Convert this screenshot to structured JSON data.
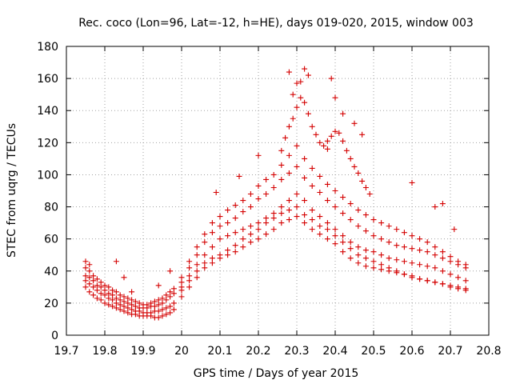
{
  "chart_data": {
    "type": "scatter",
    "title": "Rec. coco (Lon=96, Lat=-12, h=HE), days 019-020, 2015, window 003",
    "xlabel": "GPS time / Days of year 2015",
    "ylabel": "STEC from uqrg / TECUs",
    "xlim": [
      19.7,
      20.8
    ],
    "ylim": [
      0,
      180
    ],
    "x_ticks": [
      "19.7",
      "19.8",
      "19.9",
      "20",
      "20.1",
      "20.2",
      "20.3",
      "20.4",
      "20.5",
      "20.6",
      "20.7",
      "20.8"
    ],
    "y_ticks": [
      "0",
      "20",
      "40",
      "60",
      "80",
      "100",
      "120",
      "140",
      "160",
      "180"
    ],
    "grid": true,
    "marker": "+",
    "color": "#d40000",
    "series": [
      {
        "name": "",
        "x": [
          19.75,
          19.76,
          19.77,
          19.78,
          19.79,
          19.8,
          19.81,
          19.82,
          19.83,
          19.84,
          19.85,
          19.86,
          19.87,
          19.88,
          19.89,
          19.9,
          19.91,
          19.92,
          19.93,
          19.94,
          19.95,
          19.96,
          19.97,
          19.98,
          19.75,
          19.76,
          19.77,
          19.78,
          19.79,
          19.8,
          19.81,
          19.82,
          19.83,
          19.84,
          19.85,
          19.86,
          19.87,
          19.88,
          19.89,
          19.9,
          19.91,
          19.92,
          19.93,
          19.94,
          19.95,
          19.96,
          19.97,
          19.98,
          19.75,
          19.76,
          19.77,
          19.78,
          19.79,
          19.8,
          19.81,
          19.82,
          19.83,
          19.84,
          19.85,
          19.86,
          19.87,
          19.88,
          19.89,
          19.9,
          19.91,
          19.92,
          19.93,
          19.94,
          19.95,
          19.96,
          19.97,
          19.98,
          19.75,
          19.76,
          19.77,
          19.78,
          19.79,
          19.8,
          19.81,
          19.82,
          19.83,
          19.84,
          19.85,
          19.86,
          19.87,
          19.88,
          19.89,
          19.9,
          19.91,
          19.92,
          19.93,
          19.94,
          19.95,
          19.96,
          19.97,
          19.98,
          19.75,
          19.76,
          19.83,
          19.85,
          19.87,
          19.94,
          19.97,
          20.0,
          20.02,
          20.04,
          20.06,
          20.08,
          20.1,
          20.12,
          20.14,
          20.16,
          20.18,
          20.2,
          20.22,
          20.24,
          20.26,
          20.28,
          20.3,
          20.32,
          20.34,
          20.36,
          20.38,
          20.4,
          20.42,
          20.44,
          20.46,
          20.48,
          20.5,
          20.52,
          20.54,
          20.56,
          20.58,
          20.6,
          20.62,
          20.64,
          20.66,
          20.68,
          20.7,
          20.72,
          20.74,
          20.0,
          20.02,
          20.04,
          20.06,
          20.08,
          20.1,
          20.12,
          20.14,
          20.16,
          20.18,
          20.2,
          20.22,
          20.24,
          20.26,
          20.28,
          20.3,
          20.32,
          20.34,
          20.36,
          20.38,
          20.4,
          20.42,
          20.44,
          20.46,
          20.48,
          20.5,
          20.52,
          20.54,
          20.56,
          20.58,
          20.6,
          20.62,
          20.64,
          20.66,
          20.68,
          20.7,
          20.72,
          20.74,
          20.0,
          20.02,
          20.04,
          20.06,
          20.08,
          20.1,
          20.12,
          20.14,
          20.16,
          20.18,
          20.2,
          20.22,
          20.24,
          20.26,
          20.28,
          20.3,
          20.32,
          20.34,
          20.36,
          20.38,
          20.4,
          20.42,
          20.44,
          20.46,
          20.48,
          20.5,
          20.52,
          20.54,
          20.56,
          20.58,
          20.6,
          20.62,
          20.64,
          20.66,
          20.68,
          20.7,
          20.72,
          20.74,
          20.0,
          20.02,
          20.04,
          20.06,
          20.08,
          20.1,
          20.12,
          20.14,
          20.16,
          20.18,
          20.2,
          20.22,
          20.24,
          20.26,
          20.28,
          20.3,
          20.32,
          20.34,
          20.36,
          20.38,
          20.4,
          20.42,
          20.44,
          20.46,
          20.48,
          20.5,
          20.52,
          20.54,
          20.56,
          20.58,
          20.6,
          20.62,
          20.64,
          20.66,
          20.68,
          20.7,
          20.72,
          20.74,
          20.0,
          20.02,
          20.04,
          20.06,
          20.08,
          20.1,
          20.12,
          20.14,
          20.16,
          20.18,
          20.2,
          20.22,
          20.24,
          20.26,
          20.28,
          20.3,
          20.32,
          20.34,
          20.36,
          20.38,
          20.4,
          20.42,
          20.44,
          20.46,
          20.48,
          20.5,
          20.52,
          20.54,
          20.56,
          20.58,
          20.6,
          20.62,
          20.64,
          20.66,
          20.68,
          20.7,
          20.72,
          20.74,
          20.26,
          20.27,
          20.28,
          20.29,
          20.3,
          20.31,
          20.32,
          20.33,
          20.34,
          20.35,
          20.36,
          20.37,
          20.38,
          20.39,
          20.4,
          20.41,
          20.42,
          20.43,
          20.44,
          20.45,
          20.46,
          20.47,
          20.48,
          20.49,
          20.28,
          20.29,
          20.3,
          20.31,
          20.32,
          20.33,
          20.38,
          20.39,
          20.4,
          20.42,
          20.45,
          20.47,
          20.09,
          20.15,
          20.2,
          20.6,
          20.66,
          20.68,
          20.71
        ],
        "y": [
          30,
          27,
          25,
          23,
          22,
          20,
          19,
          18,
          17,
          16,
          15,
          14,
          13,
          13,
          12,
          12,
          12,
          12,
          11,
          11,
          12,
          13,
          14,
          16,
          34,
          32,
          30,
          28,
          26,
          25,
          23,
          22,
          20,
          19,
          18,
          17,
          16,
          15,
          15,
          14,
          14,
          14,
          15,
          15,
          16,
          17,
          18,
          20,
          37,
          36,
          34,
          31,
          30,
          28,
          26,
          25,
          23,
          22,
          21,
          20,
          19,
          18,
          17,
          17,
          17,
          18,
          18,
          19,
          20,
          22,
          24,
          26,
          42,
          40,
          37,
          35,
          33,
          31,
          30,
          28,
          27,
          25,
          24,
          23,
          22,
          21,
          20,
          19,
          19,
          20,
          21,
          22,
          23,
          25,
          27,
          29,
          46,
          44,
          46,
          36,
          27,
          31,
          40,
          24,
          30,
          36,
          42,
          45,
          48,
          50,
          52,
          55,
          58,
          60,
          63,
          66,
          70,
          72,
          74,
          70,
          66,
          63,
          60,
          57,
          52,
          48,
          45,
          43,
          42,
          41,
          40,
          39,
          38,
          37,
          35,
          34,
          33,
          32,
          30,
          29,
          28,
          30,
          37,
          44,
          50,
          55,
          60,
          62,
          64,
          66,
          68,
          70,
          73,
          76,
          80,
          84,
          88,
          84,
          78,
          74,
          70,
          66,
          62,
          58,
          55,
          53,
          52,
          50,
          48,
          47,
          46,
          45,
          44,
          43,
          42,
          40,
          38,
          36,
          34,
          33,
          42,
          50,
          58,
          64,
          68,
          70,
          73,
          77,
          80,
          85,
          88,
          92,
          97,
          101,
          105,
          98,
          93,
          89,
          84,
          80,
          76,
          72,
          68,
          65,
          62,
          60,
          58,
          56,
          55,
          54,
          53,
          52,
          50,
          48,
          46,
          44,
          42,
          36,
          46,
          55,
          63,
          70,
          74,
          78,
          81,
          84,
          88,
          93,
          97,
          100,
          106,
          112,
          118,
          110,
          104,
          99,
          94,
          90,
          86,
          82,
          78,
          75,
          72,
          70,
          68,
          66,
          64,
          62,
          60,
          58,
          55,
          52,
          49,
          46,
          44,
          28,
          34,
          40,
          45,
          48,
          50,
          53,
          56,
          60,
          63,
          66,
          70,
          73,
          76,
          78,
          80,
          75,
          72,
          68,
          66,
          62,
          58,
          54,
          50,
          48,
          46,
          44,
          42,
          40,
          38,
          36,
          35,
          34,
          33,
          32,
          31,
          30,
          29,
          115,
          123,
          130,
          135,
          142,
          148,
          145,
          138,
          130,
          125,
          120,
          118,
          121,
          124,
          127,
          126,
          121,
          115,
          110,
          105,
          101,
          96,
          92,
          88,
          164,
          150,
          157,
          158,
          166,
          162,
          116,
          160,
          148,
          138,
          132,
          125,
          89,
          99,
          112,
          95,
          80,
          82,
          66
        ]
      }
    ]
  }
}
